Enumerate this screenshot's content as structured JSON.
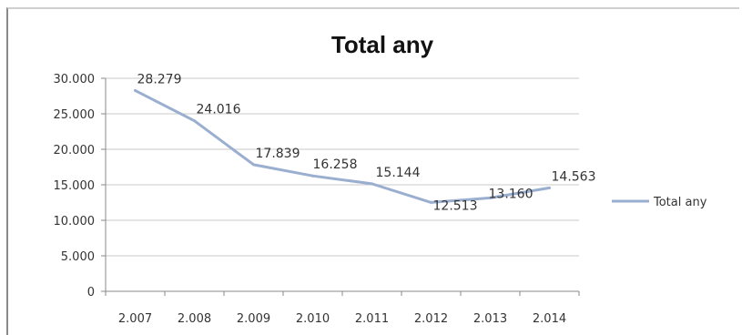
{
  "chart_data": {
    "type": "line",
    "title": "Total any",
    "categories": [
      "2.007",
      "2.008",
      "2.009",
      "2.010",
      "2.011",
      "2.012",
      "2.013",
      "2.014"
    ],
    "series": [
      {
        "name": "Total any",
        "values": [
          28279,
          24016,
          17839,
          16258,
          15144,
          12513,
          13160,
          14563
        ],
        "labels": [
          "28.279",
          "24.016",
          "17.839",
          "16.258",
          "15.144",
          "12.513",
          "13.160",
          "14.563"
        ],
        "color": "#9aaed0"
      }
    ],
    "y_ticks": [
      0,
      5000,
      10000,
      15000,
      20000,
      25000,
      30000
    ],
    "y_tick_labels": [
      "0",
      "5.000",
      "10.000",
      "15.000",
      "20.000",
      "25.000",
      "30.000"
    ],
    "ylim": [
      0,
      30000
    ],
    "grid": true,
    "legend_position": "right"
  }
}
